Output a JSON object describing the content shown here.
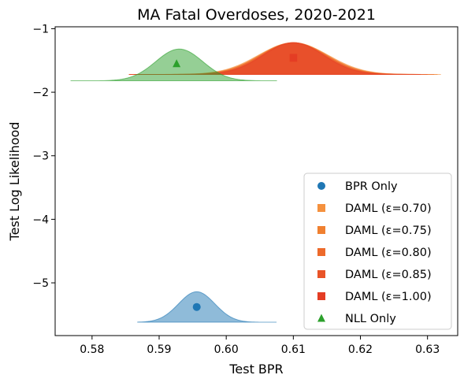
{
  "chart_data": {
    "type": "scatter",
    "title": "MA Fatal Overdoses, 2020-2021",
    "xlabel": "Test BPR",
    "ylabel": "Test Log Likelihood",
    "xlim": [
      0.5745,
      0.6345
    ],
    "ylim": [
      -5.83,
      -0.97
    ],
    "xticks": [
      0.58,
      0.59,
      0.6,
      0.61,
      0.62,
      0.63
    ],
    "xtick_labels": [
      "0.58",
      "0.59",
      "0.60",
      "0.61",
      "0.62",
      "0.63"
    ],
    "yticks": [
      -1,
      -2,
      -3,
      -4,
      -5
    ],
    "ytick_labels": [
      "−1",
      "−2",
      "−3",
      "−4",
      "−5"
    ],
    "grid": false,
    "legend_position": "lower-right",
    "series": [
      {
        "name": "BPR Only",
        "marker": "circle",
        "color": "#1f77b4",
        "point": {
          "x": 0.5956,
          "y": -5.38
        },
        "distribution": {
          "x_min": 0.5868,
          "x_max": 0.6075,
          "base_y": -5.62,
          "peak_x": 0.5956,
          "peak_height": 0.48,
          "sigma": 0.0027
        }
      },
      {
        "name": "DAML (ε=0.70)",
        "marker": "square",
        "color": "#f5913e",
        "point": {
          "x": 0.61,
          "y": -1.46
        },
        "distribution": {
          "x_min": 0.5855,
          "x_max": 0.632,
          "base_y": -1.72,
          "peak_x": 0.61,
          "peak_height": 0.5,
          "sigma": 0.0052
        }
      },
      {
        "name": "DAML (ε=0.75)",
        "marker": "square",
        "color": "#f08030",
        "point": {
          "x": 0.61,
          "y": -1.46
        },
        "distribution": {
          "x_min": 0.5855,
          "x_max": 0.6315,
          "base_y": -1.72,
          "peak_x": 0.61,
          "peak_height": 0.5,
          "sigma": 0.005
        }
      },
      {
        "name": "DAML (ε=0.80)",
        "marker": "square",
        "color": "#ed6a2b",
        "point": {
          "x": 0.61,
          "y": -1.46
        },
        "distribution": {
          "x_min": 0.5855,
          "x_max": 0.631,
          "base_y": -1.72,
          "peak_x": 0.61,
          "peak_height": 0.5,
          "sigma": 0.0049
        }
      },
      {
        "name": "DAML (ε=0.85)",
        "marker": "square",
        "color": "#e95428",
        "point": {
          "x": 0.61,
          "y": -1.46
        },
        "distribution": {
          "x_min": 0.5855,
          "x_max": 0.63,
          "base_y": -1.72,
          "peak_x": 0.61,
          "peak_height": 0.5,
          "sigma": 0.0047
        }
      },
      {
        "name": "DAML (ε=1.00)",
        "marker": "square",
        "color": "#e43d24",
        "point": {
          "x": 0.61,
          "y": -1.46
        },
        "distribution": {
          "x_min": 0.5855,
          "x_max": 0.629,
          "base_y": -1.72,
          "peak_x": 0.61,
          "peak_height": 0.5,
          "sigma": 0.0045
        }
      },
      {
        "name": "NLL Only",
        "marker": "triangle",
        "color": "#2ca02c",
        "point": {
          "x": 0.5926,
          "y": -1.55
        },
        "distribution": {
          "x_min": 0.5768,
          "x_max": 0.6075,
          "base_y": -1.82,
          "peak_x": 0.593,
          "peak_height": 0.5,
          "sigma": 0.0035
        }
      }
    ]
  }
}
